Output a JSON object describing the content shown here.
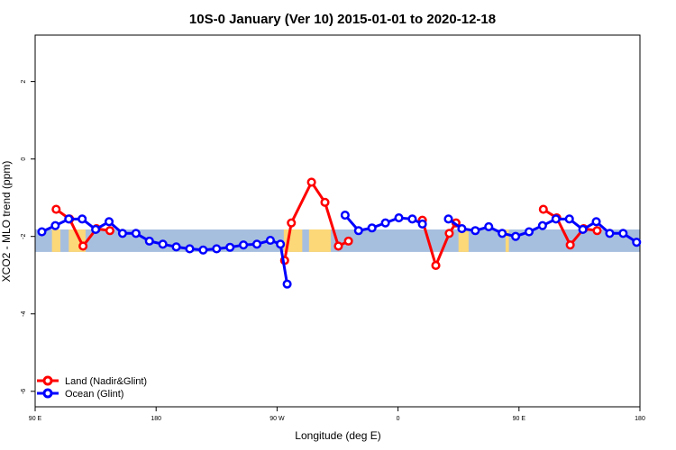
{
  "chart_data": {
    "type": "line",
    "title": "10S-0 January (Ver 10)   2015-01-01 to 2020-12-18",
    "xlabel": "Longitude (deg E)",
    "ylabel": "XCO2 - MLO trend (ppm)",
    "xlim": [
      90,
      450
    ],
    "ylim": [
      -6.4,
      3.2
    ],
    "x_ticks": [
      {
        "value": 90,
        "label": "90 E"
      },
      {
        "value": 162,
        "label": "180"
      },
      {
        "value": 234,
        "label": "90 W"
      },
      {
        "value": 306,
        "label": "0"
      },
      {
        "value": 378,
        "label": "90 E"
      },
      {
        "value": 450,
        "label": "180"
      }
    ],
    "y_ticks": [
      {
        "value": 2,
        "label": "2"
      },
      {
        "value": 0,
        "label": "0"
      },
      {
        "value": -2,
        "label": "-2"
      },
      {
        "value": -4,
        "label": "-4"
      },
      {
        "value": -6,
        "label": "-6"
      }
    ],
    "band": {
      "ymin": -2.4,
      "ymax": -1.82,
      "ocean_color": "#a7bfdf",
      "land_color": "#fcd879"
    },
    "land_spans": [
      [
        100,
        105
      ],
      [
        110,
        120
      ],
      [
        238,
        249
      ],
      [
        253,
        266
      ],
      [
        342,
        348
      ],
      [
        370,
        372
      ]
    ],
    "legend": {
      "position": "bottom-left"
    },
    "series": [
      {
        "name": "Land (Nadir&Glint)",
        "color": "#ff0000",
        "segments": [
          [
            [
              102.5,
              -1.3
            ],
            [
              110.5,
              -1.55
            ],
            [
              118.5,
              -2.25
            ],
            [
              126.5,
              -1.8
            ],
            [
              134.5,
              -1.85
            ]
          ],
          [
            [
              238.5,
              -2.62
            ],
            [
              242.5,
              -1.65
            ],
            [
              254.5,
              -0.6
            ],
            [
              262.5,
              -1.12
            ],
            [
              270.5,
              -2.25
            ],
            [
              276.5,
              -2.12
            ]
          ],
          [
            [
              320.5,
              -1.58
            ],
            [
              328.5,
              -2.75
            ],
            [
              336.5,
              -1.92
            ],
            [
              340.5,
              -1.65
            ]
          ],
          [
            [
              392.5,
              -1.3
            ],
            [
              400.5,
              -1.52
            ],
            [
              408.5,
              -2.22
            ],
            [
              416.5,
              -1.8
            ],
            [
              424.5,
              -1.85
            ]
          ]
        ]
      },
      {
        "name": "Ocean (Glint)",
        "color": "#0000ff",
        "segments": [
          [
            [
              94,
              -1.88
            ],
            [
              102,
              -1.72
            ],
            [
              110,
              -1.55
            ],
            [
              118,
              -1.55
            ],
            [
              126,
              -1.82
            ],
            [
              134,
              -1.62
            ],
            [
              142,
              -1.92
            ],
            [
              150,
              -1.92
            ],
            [
              158,
              -2.12
            ],
            [
              166,
              -2.2
            ],
            [
              174,
              -2.27
            ],
            [
              182,
              -2.32
            ],
            [
              190,
              -2.35
            ],
            [
              198,
              -2.32
            ],
            [
              206,
              -2.28
            ],
            [
              214,
              -2.22
            ],
            [
              222,
              -2.2
            ],
            [
              230,
              -2.1
            ],
            [
              236,
              -2.2
            ],
            [
              240,
              -3.23
            ]
          ],
          [
            [
              274.5,
              -1.45
            ],
            [
              282.5,
              -1.85
            ],
            [
              290.5,
              -1.78
            ],
            [
              298.5,
              -1.65
            ],
            [
              306.5,
              -1.52
            ],
            [
              314.5,
              -1.55
            ],
            [
              320.5,
              -1.68
            ]
          ],
          [
            [
              336,
              -1.55
            ],
            [
              344,
              -1.8
            ],
            [
              352,
              -1.85
            ],
            [
              360,
              -1.75
            ],
            [
              368,
              -1.92
            ],
            [
              376,
              -2.0
            ],
            [
              384,
              -1.88
            ],
            [
              392,
              -1.72
            ],
            [
              400,
              -1.55
            ],
            [
              408,
              -1.55
            ],
            [
              416,
              -1.82
            ],
            [
              424,
              -1.62
            ],
            [
              432,
              -1.92
            ],
            [
              440,
              -1.92
            ],
            [
              448,
              -2.15
            ]
          ]
        ]
      }
    ]
  }
}
